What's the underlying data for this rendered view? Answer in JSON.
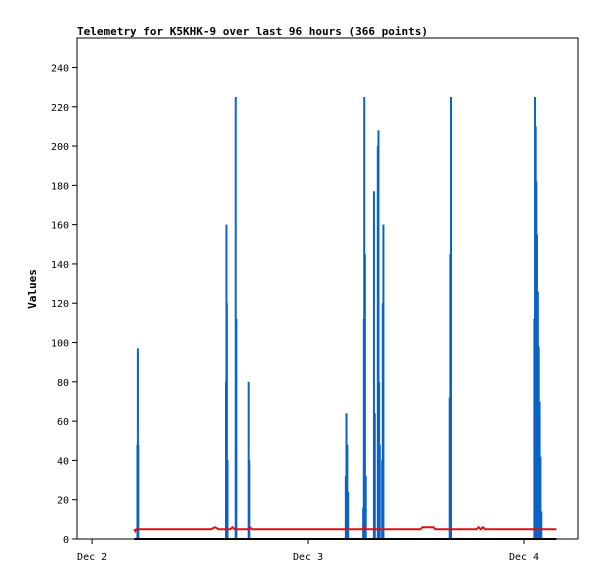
{
  "chart_data": {
    "type": "line",
    "title": "Telemetry for K5KHK-9 over last 96 hours (366 points)",
    "xlabel": "",
    "ylabel": "Values",
    "ylim": [
      0,
      255
    ],
    "xlim_days": [
      -0.07,
      2.25
    ],
    "yticks": [
      0,
      20,
      40,
      60,
      80,
      100,
      120,
      140,
      160,
      180,
      200,
      220,
      240
    ],
    "xticks": [
      {
        "label": "Dec 2",
        "day": 0
      },
      {
        "label": "Dec 3",
        "day": 1
      },
      {
        "label": "Dec 4",
        "day": 2
      }
    ],
    "grid": false,
    "series": [
      {
        "color": "#0b63c6",
        "style": "spikes",
        "points": [
          [
            0.21,
            48
          ],
          [
            0.212,
            97
          ],
          [
            0.214,
            48
          ],
          [
            0.62,
            80
          ],
          [
            0.622,
            160
          ],
          [
            0.624,
            120
          ],
          [
            0.627,
            40
          ],
          [
            0.665,
            225
          ],
          [
            0.668,
            112
          ],
          [
            0.725,
            80
          ],
          [
            0.728,
            40
          ],
          [
            1.175,
            32
          ],
          [
            1.178,
            64
          ],
          [
            1.182,
            48
          ],
          [
            1.186,
            24
          ],
          [
            1.255,
            16
          ],
          [
            1.258,
            112
          ],
          [
            1.26,
            225
          ],
          [
            1.263,
            145
          ],
          [
            1.267,
            32
          ],
          [
            1.305,
            177
          ],
          [
            1.309,
            64
          ],
          [
            1.323,
            200
          ],
          [
            1.326,
            208
          ],
          [
            1.329,
            80
          ],
          [
            1.332,
            48
          ],
          [
            1.343,
            40
          ],
          [
            1.346,
            120
          ],
          [
            1.349,
            160
          ],
          [
            1.656,
            72
          ],
          [
            1.659,
            145
          ],
          [
            1.662,
            225
          ],
          [
            2.048,
            112
          ],
          [
            2.051,
            225
          ],
          [
            2.054,
            210
          ],
          [
            2.057,
            182
          ],
          [
            2.06,
            155
          ],
          [
            2.064,
            126
          ],
          [
            2.068,
            98
          ],
          [
            2.072,
            70
          ],
          [
            2.076,
            42
          ],
          [
            2.08,
            14
          ]
        ]
      },
      {
        "color": "#dd1111",
        "style": "line",
        "points": [
          [
            0.195,
            5
          ],
          [
            0.2,
            4
          ],
          [
            0.205,
            5
          ],
          [
            0.55,
            5
          ],
          [
            0.56,
            5.5
          ],
          [
            0.57,
            6
          ],
          [
            0.585,
            5
          ],
          [
            0.64,
            5
          ],
          [
            0.65,
            6
          ],
          [
            0.66,
            5
          ],
          [
            0.72,
            5
          ],
          [
            0.73,
            6
          ],
          [
            0.74,
            5
          ],
          [
            1.25,
            5
          ],
          [
            1.26,
            6
          ],
          [
            1.27,
            5
          ],
          [
            1.52,
            5
          ],
          [
            1.53,
            6
          ],
          [
            1.58,
            6
          ],
          [
            1.59,
            5
          ],
          [
            1.78,
            5
          ],
          [
            1.79,
            6
          ],
          [
            1.8,
            5
          ],
          [
            1.81,
            6
          ],
          [
            1.82,
            5
          ],
          [
            2.15,
            5
          ]
        ]
      },
      {
        "color": "#000000",
        "style": "line",
        "points": [
          [
            0.195,
            0
          ],
          [
            2.15,
            0
          ]
        ]
      }
    ]
  }
}
